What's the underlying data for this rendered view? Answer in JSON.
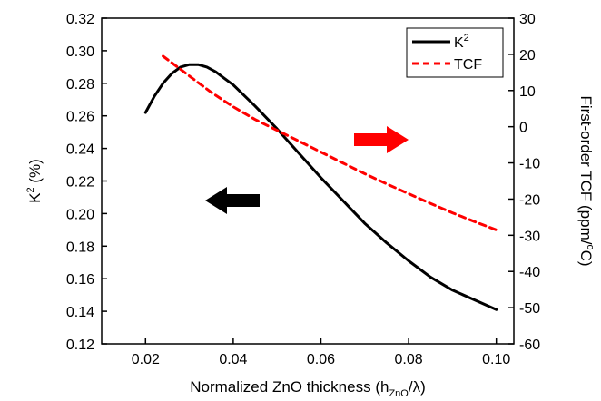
{
  "chart_data": {
    "type": "line",
    "xlabel": "Normalized ZnO thickness (h",
    "xlabel_sub": "ZnO",
    "xlabel_tail": "/λ)",
    "ylabel_left": "K",
    "ylabel_left_sup": "2",
    "ylabel_left_tail": " (%)",
    "ylabel_right": "First-order TCF (ppm/",
    "ylabel_right_sup": "o",
    "ylabel_right_tail": "C)",
    "xlim": [
      0.01,
      0.104
    ],
    "ylim_left": [
      0.12,
      0.32
    ],
    "ylim_right": [
      -60,
      30
    ],
    "xticks": [
      0.02,
      0.04,
      0.06,
      0.08,
      0.1
    ],
    "xtick_labels": [
      "0.02",
      "0.04",
      "0.06",
      "0.08",
      "0.10"
    ],
    "yticks_left": [
      0.12,
      0.14,
      0.16,
      0.18,
      0.2,
      0.22,
      0.24,
      0.26,
      0.28,
      0.3,
      0.32
    ],
    "ytick_labels_left": [
      "0.12",
      "0.14",
      "0.16",
      "0.18",
      "0.20",
      "0.22",
      "0.24",
      "0.26",
      "0.28",
      "0.30",
      "0.32"
    ],
    "yticks_right": [
      -60,
      -50,
      -40,
      -30,
      -20,
      -10,
      0,
      10,
      20,
      30
    ],
    "ytick_labels_right": [
      "-60",
      "-50",
      "-40",
      "-30",
      "-20",
      "-10",
      "0",
      "10",
      "20",
      "30"
    ],
    "legend_position": "top-right",
    "series": [
      {
        "name": "K",
        "name_sup": "2",
        "axis": "left",
        "style": "solid",
        "color": "#000000",
        "x": [
          0.02,
          0.022,
          0.024,
          0.026,
          0.028,
          0.03,
          0.032,
          0.034,
          0.036,
          0.038,
          0.04,
          0.045,
          0.05,
          0.055,
          0.06,
          0.065,
          0.07,
          0.075,
          0.08,
          0.085,
          0.09,
          0.095,
          0.1
        ],
        "y": [
          0.262,
          0.272,
          0.28,
          0.286,
          0.29,
          0.2915,
          0.2915,
          0.29,
          0.287,
          0.283,
          0.279,
          0.266,
          0.252,
          0.237,
          0.222,
          0.208,
          0.194,
          0.182,
          0.171,
          0.161,
          0.153,
          0.147,
          0.141
        ]
      },
      {
        "name": "TCF",
        "axis": "right",
        "style": "dashed",
        "color": "#ff0000",
        "x": [
          0.024,
          0.03,
          0.035,
          0.04,
          0.045,
          0.05,
          0.055,
          0.06,
          0.065,
          0.07,
          0.075,
          0.08,
          0.085,
          0.09,
          0.095,
          0.1
        ],
        "y": [
          19.5,
          14.0,
          9.5,
          5.5,
          2.0,
          -1.0,
          -4.0,
          -7.0,
          -10.0,
          -13.0,
          -15.8,
          -18.5,
          -21.2,
          -23.8,
          -26.2,
          -28.5
        ]
      }
    ],
    "arrows": [
      {
        "points_to": "left",
        "color": "#000000"
      },
      {
        "points_to": "right",
        "color": "#ff0000"
      }
    ]
  }
}
